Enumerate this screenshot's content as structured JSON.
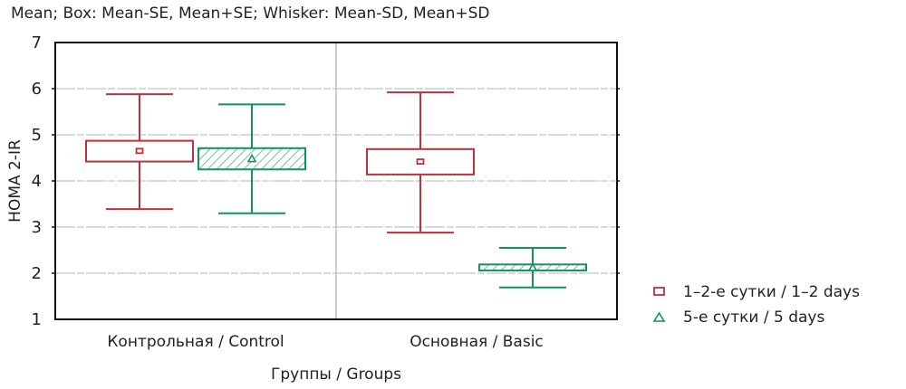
{
  "chart_data": {
    "type": "boxplot",
    "title": "Mean; Box: Mean-SE, Mean+SE; Whisker: Mean-SD, Mean+SD",
    "xlabel": "Группы / Groups",
    "ylabel": "HOMA 2-IR",
    "ylim": [
      1,
      7
    ],
    "yticks": [
      "1",
      "2",
      "3",
      "4",
      "5",
      "6",
      "7"
    ],
    "grid": true,
    "legend_position": "right-bottom",
    "categories": [
      "Контрольная / Control",
      "Основная / Basic"
    ],
    "series": [
      {
        "name": "1–2-е сутки / 1–2 days",
        "marker": "square",
        "color": "#c0303a",
        "hatched": false,
        "values": [
          {
            "mean": 4.65,
            "se_low": 4.42,
            "se_high": 4.87,
            "sd_low": 3.39,
            "sd_high": 5.88
          },
          {
            "mean": 4.42,
            "se_low": 4.14,
            "se_high": 4.69,
            "sd_low": 2.88,
            "sd_high": 5.92
          }
        ]
      },
      {
        "name": "5-е сутки / 5 days",
        "marker": "triangle",
        "color": "#13935a",
        "hatched": true,
        "values": [
          {
            "mean": 4.48,
            "se_low": 4.25,
            "se_high": 4.71,
            "sd_low": 3.3,
            "sd_high": 5.66
          },
          {
            "mean": 2.12,
            "se_low": 2.06,
            "se_high": 2.19,
            "sd_low": 1.69,
            "sd_high": 2.55
          }
        ]
      }
    ]
  }
}
